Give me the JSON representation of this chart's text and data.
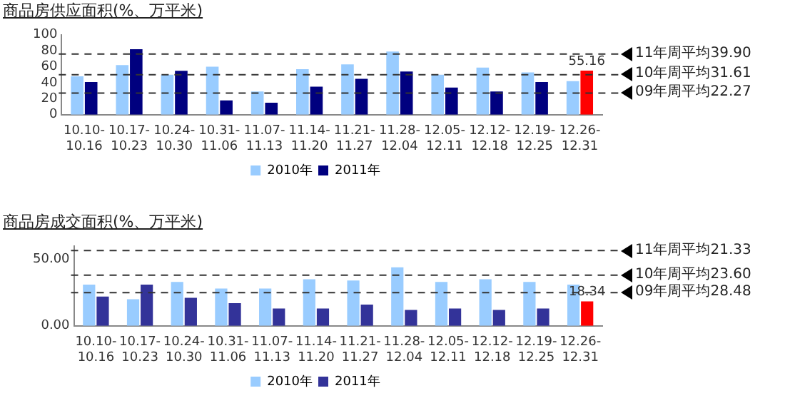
{
  "chart_data": [
    {
      "type": "bar",
      "title": "商品房供应面积(%、万平米)",
      "categories": [
        "10.10-10.16",
        "10.17-10.23",
        "10.24-10.30",
        "10.31-11.06",
        "11.07-11.13",
        "11.14-11.20",
        "11.21-11.27",
        "11.28-12.04",
        "12.05-12.11",
        "12.12-12.18",
        "12.19-12.25",
        "12.26-12.31"
      ],
      "series": [
        {
          "name": "2010年",
          "color": "#99ccff",
          "values": [
            48,
            62,
            50,
            60,
            29,
            57,
            63,
            79,
            50,
            59,
            53,
            42
          ]
        },
        {
          "name": "2011年",
          "color": "#00007f",
          "colors": [
            "#00007f",
            "#00007f",
            "#00007f",
            "#00007f",
            "#00007f",
            "#00007f",
            "#00007f",
            "#00007f",
            "#00007f",
            "#00007f",
            "#00007f",
            "#ff0000"
          ],
          "values": [
            41,
            82,
            55,
            18,
            15,
            35,
            45,
            54,
            34,
            29,
            41,
            55.16
          ],
          "value_labels": [
            null,
            null,
            null,
            null,
            null,
            null,
            null,
            null,
            null,
            null,
            null,
            "55.16"
          ]
        }
      ],
      "ylim": [
        0,
        100
      ],
      "yticks": [
        0,
        20,
        40,
        60,
        80,
        100
      ],
      "legend": "bottom",
      "ref_lines": [
        {
          "axis": "y",
          "value": 76,
          "label": "11年周平均39.90",
          "line_style": "dashed"
        },
        {
          "axis": "y",
          "value": 50,
          "label": "10年周平均31.61",
          "line_style": "dashed"
        },
        {
          "axis": "y",
          "value": 27,
          "label": "09年周平均22.27",
          "line_style": "dashed"
        }
      ]
    },
    {
      "type": "bar",
      "title": "商品房成交面积(%、万平米)",
      "categories": [
        "10.10-10.16",
        "10.17-10.23",
        "10.24-10.30",
        "10.31-11.06",
        "11.07-11.13",
        "11.14-11.20",
        "11.21-11.27",
        "11.28-12.04",
        "12.05-12.11",
        "12.12-12.18",
        "12.19-12.25",
        "12.26-12.31"
      ],
      "series": [
        {
          "name": "2010年",
          "color": "#99ccff",
          "values": [
            31,
            20,
            33,
            28,
            28,
            35,
            34,
            44,
            33,
            35,
            33,
            31
          ]
        },
        {
          "name": "2011年",
          "color": "#333399",
          "colors": [
            "#333399",
            "#333399",
            "#333399",
            "#333399",
            "#333399",
            "#333399",
            "#333399",
            "#333399",
            "#333399",
            "#333399",
            "#333399",
            "#ff0000"
          ],
          "values": [
            22,
            31,
            21,
            17,
            13,
            13,
            16,
            12,
            13,
            12,
            13,
            18.34
          ],
          "value_labels": [
            null,
            null,
            null,
            null,
            null,
            null,
            null,
            null,
            null,
            null,
            null,
            "18.34"
          ]
        }
      ],
      "ylim": [
        0,
        60
      ],
      "yticks": [
        {
          "value": 0,
          "label": "0.00"
        },
        {
          "value": 50,
          "label": "50.00"
        }
      ],
      "legend": "bottom",
      "ref_lines": [
        {
          "axis": "y",
          "value": 56.5,
          "label": "11年周平均21.33",
          "line_style": "dashed"
        },
        {
          "axis": "y",
          "value": 38,
          "label": "10年周平均23.60",
          "line_style": "dashed"
        },
        {
          "axis": "y",
          "value": 25,
          "label": "09年周平均28.48",
          "line_style": "dashed"
        }
      ]
    }
  ]
}
